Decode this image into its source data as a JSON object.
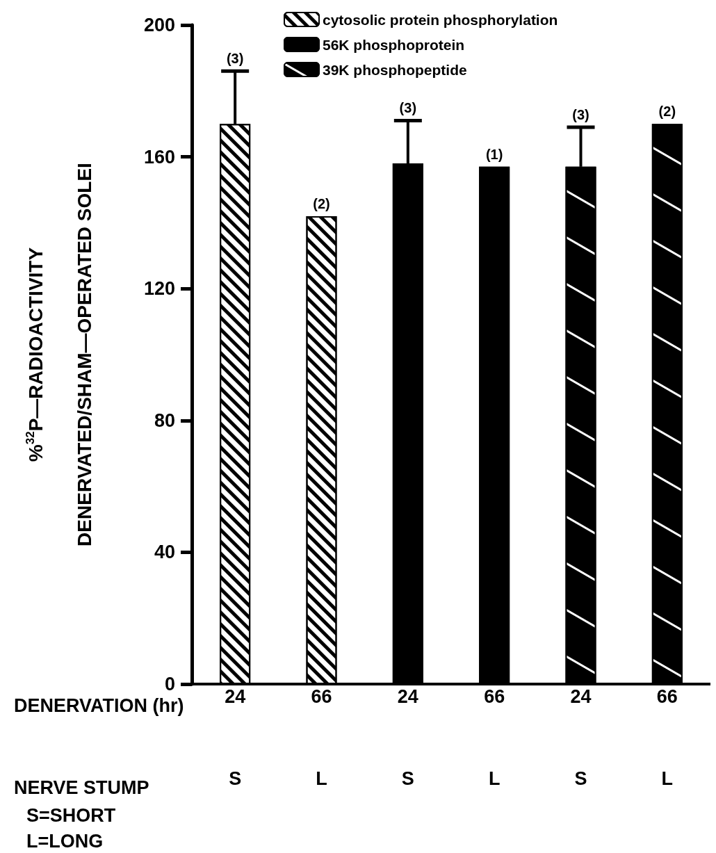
{
  "chart_data": {
    "type": "bar",
    "categories": [
      "24\nS",
      "66\nL",
      "24\nS",
      "66\nL",
      "24\nS",
      "66\nL"
    ],
    "xlabel": "DENERVATION (hr)",
    "ylabel": "%$^{32}$P—RADIOACTIVITY\nDENERVATED/SHAM—OPERATED SOLEI",
    "series": [
      {
        "name": "cytosolic protein phosphorylation",
        "color": "#ffffff",
        "values": [
          170,
          142,
          null,
          null,
          null,
          null
        ],
        "errors": [
          [
            170,
            186
          ],
          null,
          null,
          null,
          null,
          null
        ]
      },
      {
        "name": "56K phosphoprotein",
        "color": "#000000",
        "values": [
          null,
          null,
          158,
          157,
          null,
          null
        ],
        "errors": [
          null,
          null,
          [
            158,
            171
          ],
          null,
          null,
          null
        ]
      },
      {
        "name": "39K phosphopeptide",
        "color": "#000000",
        "values": [
          null,
          null,
          null,
          null,
          157,
          170
        ],
        "errors": [
          null,
          null,
          null,
          null,
          [
            157,
            169
          ],
          null
        ]
      }
    ],
    "ylim": [
      0,
      200
    ],
    "yticks": [
      0,
      40,
      80,
      120,
      160,
      200
    ],
    "grid": false,
    "legend": "top",
    "annotations": [
      "(3)",
      "(2)",
      "(3)",
      "(1)",
      "(3)",
      "(2)",
      "NERVE STUMP",
      "S=SHORT",
      "L=LONG"
    ]
  }
}
